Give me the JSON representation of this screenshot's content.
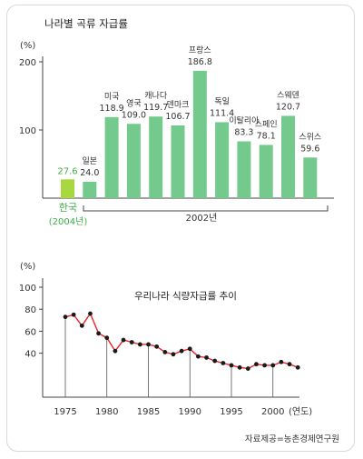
{
  "chart_data": [
    {
      "type": "bar",
      "title": "나라별 곡류 자급률",
      "ylabel": "(%)",
      "ylim": [
        0,
        200
      ],
      "yticks": [
        100,
        200
      ],
      "group_label": "2002년",
      "colors": {
        "bar": "#74c98c",
        "highlight_bar": "#a8d840",
        "highlight_text": "#3fae49",
        "label": "#333333"
      },
      "categories": [
        "한국",
        "일본",
        "미국",
        "영국",
        "캐나다",
        "덴마크",
        "프랑스",
        "독일",
        "이탈리아",
        "스페인",
        "스웨덴",
        "스위스"
      ],
      "values": [
        27.6,
        24.0,
        118.9,
        109.0,
        119.7,
        106.7,
        186.8,
        111.4,
        83.3,
        78.1,
        120.7,
        59.6
      ],
      "value_labels": [
        "27.6",
        "24.0",
        "118.9",
        "109.0",
        "119.7",
        "106.7",
        "186.8",
        "111.4",
        "83.3",
        "78.1",
        "120.7",
        "59.6"
      ],
      "highlight": {
        "category": "한국",
        "note": "(2004년)"
      }
    },
    {
      "type": "line",
      "title": "우리나라 식량자급률 추이",
      "ylabel": "(%)",
      "xlabel": "(연도)",
      "ylim": [
        0,
        100
      ],
      "yticks": [
        40,
        60,
        80,
        100
      ],
      "xticks": [
        1975,
        1980,
        1985,
        1990,
        1995,
        2000
      ],
      "colors": {
        "line": "#e8262b",
        "point": "#1a1a1a"
      },
      "x": [
        1975,
        1976,
        1977,
        1978,
        1979,
        1980,
        1981,
        1982,
        1983,
        1984,
        1985,
        1986,
        1987,
        1988,
        1989,
        1990,
        1991,
        1992,
        1993,
        1994,
        1995,
        1996,
        1997,
        1998,
        1999,
        2000,
        2001,
        2002,
        2003
      ],
      "y": [
        73,
        75,
        65,
        76,
        58,
        54,
        42,
        52,
        50,
        48,
        48,
        46,
        41,
        39,
        42,
        44,
        37,
        36,
        33,
        31,
        29,
        27,
        26,
        30,
        29,
        29,
        32,
        30,
        27
      ]
    }
  ],
  "source": "자료제공=농촌경제연구원"
}
